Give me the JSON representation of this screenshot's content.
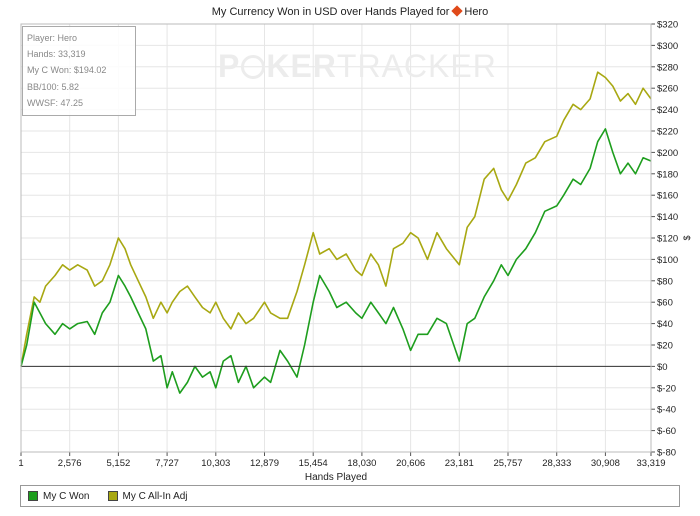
{
  "header": {
    "title_text": "My Currency Won in USD over Hands Played for",
    "player_name": "Hero"
  },
  "stats": {
    "player": "Player: Hero",
    "hands": "Hands: 33,319",
    "won": "My C Won: $194.02",
    "bb100": "BB/100: 5.82",
    "wwsf": "WWSF: 47.25"
  },
  "watermark": {
    "part1": "P",
    "part2": "KER",
    "part3": "TRACKER"
  },
  "colors": {
    "won": "#1e9e1e",
    "allin": "#a8a812",
    "grid": "#e6e6e6",
    "zero_line": "#333333",
    "diamond": "#e04a1a"
  },
  "chart_data": {
    "type": "line",
    "title": "My Currency Won in USD over Hands Played for Hero",
    "xlabel": "Hands Played",
    "ylabel": "$",
    "xlim": [
      1,
      33319
    ],
    "ylim": [
      -80,
      320
    ],
    "x_ticks": [
      1,
      2576,
      5152,
      7727,
      10303,
      12879,
      15454,
      18030,
      20606,
      23181,
      25757,
      28333,
      30908,
      33319
    ],
    "x_tick_labels": [
      "1",
      "2,576",
      "5,152",
      "7,727",
      "10,303",
      "12,879",
      "15,454",
      "18,030",
      "20,606",
      "23,181",
      "25,757",
      "28,333",
      "30,908",
      "33,319"
    ],
    "y_ticks": [
      -80,
      -60,
      -40,
      -20,
      0,
      20,
      40,
      60,
      80,
      100,
      120,
      140,
      160,
      180,
      200,
      220,
      240,
      260,
      280,
      300,
      320
    ],
    "y_tick_labels": [
      "$-80",
      "$-60",
      "$-40",
      "$-20",
      "$0",
      "$20",
      "$40",
      "$60",
      "$80",
      "$100",
      "$120",
      "$140",
      "$160",
      "$180",
      "$200",
      "$220",
      "$240",
      "$260",
      "$280",
      "$300",
      "$320"
    ],
    "grid": true,
    "legend_position": "bottom",
    "x": [
      1,
      300,
      700,
      1000,
      1300,
      1800,
      2200,
      2576,
      3000,
      3500,
      3900,
      4300,
      4700,
      5152,
      5500,
      5800,
      6200,
      6600,
      7000,
      7400,
      7727,
      8000,
      8400,
      8800,
      9200,
      9600,
      10000,
      10303,
      10700,
      11100,
      11500,
      11900,
      12300,
      12879,
      13200,
      13700,
      14100,
      14600,
      15000,
      15454,
      15800,
      16300,
      16700,
      17200,
      17700,
      18030,
      18500,
      18900,
      19300,
      19700,
      20200,
      20606,
      21000,
      21500,
      22000,
      22500,
      23181,
      23600,
      24000,
      24500,
      25000,
      25400,
      25757,
      26200,
      26700,
      27200,
      27700,
      28333,
      28700,
      29200,
      29600,
      30100,
      30500,
      30908,
      31300,
      31700,
      32100,
      32500,
      32900,
      33319
    ],
    "series": [
      {
        "name": "My C Won",
        "values": [
          0,
          20,
          60,
          50,
          40,
          30,
          40,
          35,
          40,
          42,
          30,
          50,
          60,
          85,
          75,
          65,
          50,
          35,
          5,
          10,
          -20,
          -5,
          -25,
          -15,
          0,
          -10,
          -5,
          -20,
          5,
          10,
          -15,
          0,
          -20,
          -10,
          -15,
          15,
          5,
          -10,
          20,
          60,
          85,
          70,
          55,
          60,
          50,
          45,
          60,
          50,
          40,
          55,
          35,
          15,
          30,
          30,
          45,
          40,
          5,
          40,
          45,
          65,
          80,
          95,
          85,
          100,
          110,
          125,
          145,
          150,
          160,
          175,
          170,
          185,
          210,
          222,
          200,
          180,
          190,
          180,
          195,
          192
        ]
      },
      {
        "name": "My C All-In Adj",
        "values": [
          0,
          30,
          65,
          60,
          75,
          85,
          95,
          90,
          95,
          90,
          75,
          80,
          95,
          120,
          110,
          95,
          80,
          65,
          45,
          60,
          50,
          60,
          70,
          75,
          65,
          55,
          50,
          60,
          45,
          35,
          50,
          40,
          45,
          60,
          50,
          45,
          45,
          70,
          95,
          125,
          105,
          110,
          100,
          105,
          90,
          85,
          105,
          95,
          75,
          110,
          115,
          125,
          120,
          100,
          125,
          110,
          95,
          130,
          140,
          175,
          185,
          165,
          155,
          170,
          190,
          195,
          210,
          215,
          230,
          245,
          240,
          250,
          275,
          270,
          262,
          248,
          255,
          245,
          260,
          250
        ]
      }
    ]
  }
}
